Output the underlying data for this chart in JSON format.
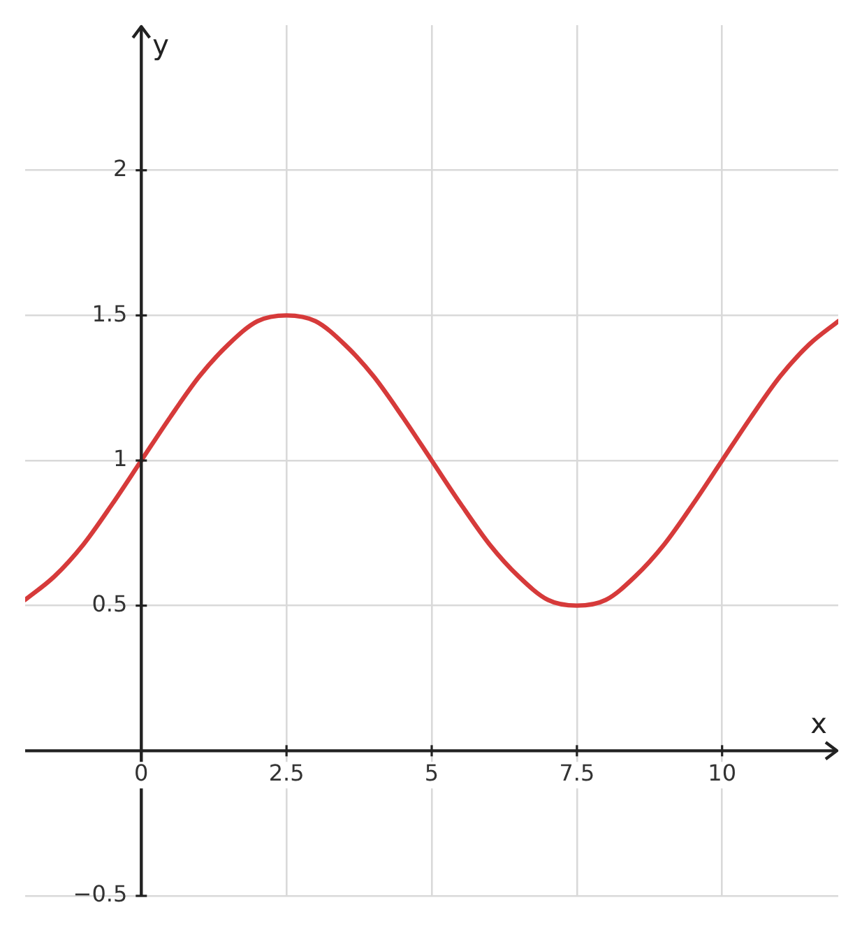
{
  "chart_data": {
    "type": "line",
    "xlabel": "x",
    "ylabel": "y",
    "x": [
      -2,
      -1.5,
      -1,
      -0.5,
      0,
      0.5,
      1,
      1.5,
      2,
      2.5,
      3,
      3.5,
      4,
      4.5,
      5,
      5.5,
      6,
      6.5,
      7,
      7.5,
      8,
      8.5,
      9,
      9.5,
      10,
      10.5,
      11,
      11.5,
      12
    ],
    "series": [
      {
        "color": "#d63a3a",
        "values": [
          0.52,
          0.6,
          0.71,
          0.85,
          1,
          1.15,
          1.29,
          1.4,
          1.48,
          1.5,
          1.48,
          1.4,
          1.29,
          1.15,
          1,
          0.85,
          0.71,
          0.6,
          0.52,
          0.5,
          0.52,
          0.6,
          0.71,
          0.85,
          1,
          1.15,
          1.29,
          1.4,
          1.48
        ]
      }
    ],
    "xlim": [
      -2,
      12
    ],
    "ylim": [
      -0.5,
      2.5
    ],
    "xticks": [
      0,
      2.5,
      5,
      7.5,
      10
    ],
    "yticks": [
      {
        "value": -0.5,
        "label": "−0.5"
      },
      0.5,
      1,
      1.5,
      2
    ],
    "grid": true,
    "legend": false,
    "marker": "none",
    "line_style": "solid"
  }
}
